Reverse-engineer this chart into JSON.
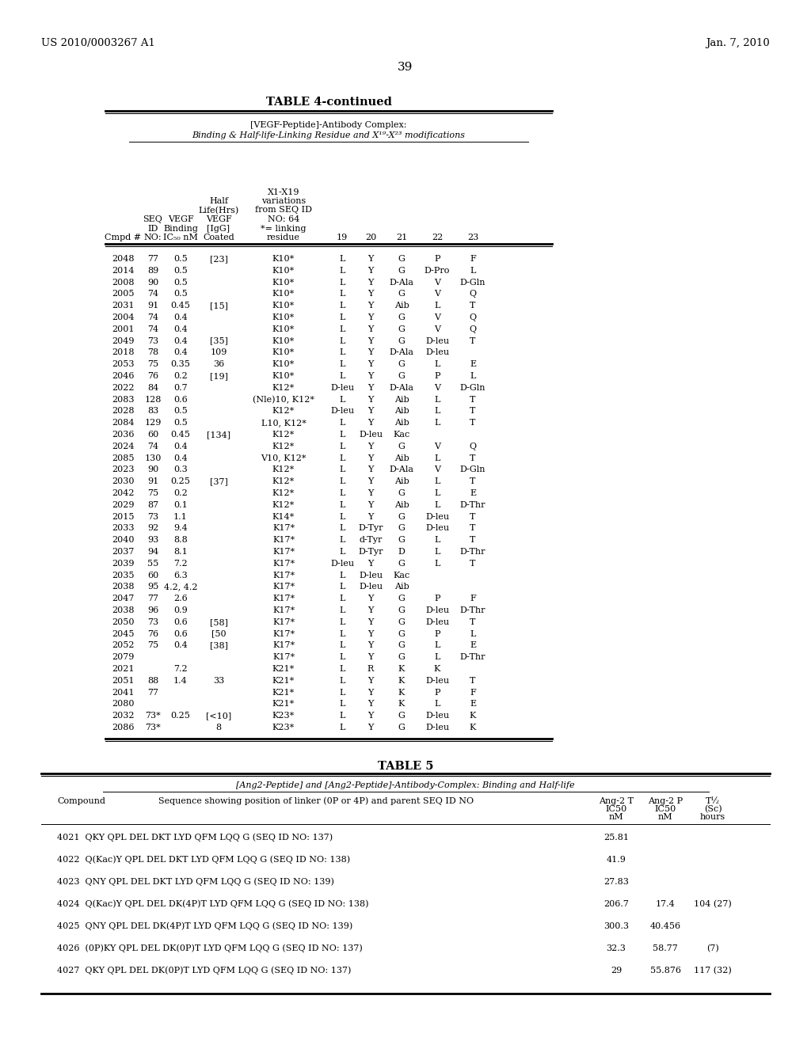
{
  "bg_color": "#ffffff",
  "header_left": "US 2010/0003267 A1",
  "header_right": "Jan. 7, 2010",
  "page_number": "39",
  "table4_title": "TABLE 4-continued",
  "table4_subtitle1": "[VEGF-Peptide]-Antibody Complex:",
  "table4_subtitle2": "Binding & Half-life-Linking Residue and X¹⁹-X²³ modifications",
  "table4_rows": [
    [
      "2048",
      "77",
      "0.5",
      "[23]",
      "K10*",
      "L",
      "Y",
      "G",
      "P",
      "F"
    ],
    [
      "2014",
      "89",
      "0.5",
      "",
      "K10*",
      "L",
      "Y",
      "G",
      "D-Pro",
      "L"
    ],
    [
      "2008",
      "90",
      "0.5",
      "",
      "K10*",
      "L",
      "Y",
      "D-Ala",
      "V",
      "D-Gln"
    ],
    [
      "2005",
      "74",
      "0.5",
      "",
      "K10*",
      "L",
      "Y",
      "G",
      "V",
      "Q"
    ],
    [
      "2031",
      "91",
      "0.45",
      "[15]",
      "K10*",
      "L",
      "Y",
      "Aib",
      "L",
      "T"
    ],
    [
      "2004",
      "74",
      "0.4",
      "",
      "K10*",
      "L",
      "Y",
      "G",
      "V",
      "Q"
    ],
    [
      "2001",
      "74",
      "0.4",
      "",
      "K10*",
      "L",
      "Y",
      "G",
      "V",
      "Q"
    ],
    [
      "2049",
      "73",
      "0.4",
      "[35]",
      "K10*",
      "L",
      "Y",
      "G",
      "D-leu",
      "T"
    ],
    [
      "2018",
      "78",
      "0.4",
      "109",
      "K10*",
      "L",
      "Y",
      "D-Ala",
      "D-leu",
      ""
    ],
    [
      "2053",
      "75",
      "0.35",
      "36",
      "K10*",
      "L",
      "Y",
      "G",
      "L",
      "E"
    ],
    [
      "2046",
      "76",
      "0.2",
      "[19]",
      "K10*",
      "L",
      "Y",
      "G",
      "P",
      "L"
    ],
    [
      "2022",
      "84",
      "0.7",
      "",
      "K12*",
      "D-leu",
      "Y",
      "D-Ala",
      "V",
      "D-Gln"
    ],
    [
      "2083",
      "128",
      "0.6",
      "",
      "(Nle)10, K12*",
      "L",
      "Y",
      "Aib",
      "L",
      "T"
    ],
    [
      "2028",
      "83",
      "0.5",
      "",
      "K12*",
      "D-leu",
      "Y",
      "Aib",
      "L",
      "T"
    ],
    [
      "2084",
      "129",
      "0.5",
      "",
      "L10, K12*",
      "L",
      "Y",
      "Aib",
      "L",
      "T"
    ],
    [
      "2036",
      "60",
      "0.45",
      "[134]",
      "K12*",
      "L",
      "D-leu",
      "Kac",
      "",
      ""
    ],
    [
      "2024",
      "74",
      "0.4",
      "",
      "K12*",
      "L",
      "Y",
      "G",
      "V",
      "Q"
    ],
    [
      "2085",
      "130",
      "0.4",
      "",
      "V10, K12*",
      "L",
      "Y",
      "Aib",
      "L",
      "T"
    ],
    [
      "2023",
      "90",
      "0.3",
      "",
      "K12*",
      "L",
      "Y",
      "D-Ala",
      "V",
      "D-Gln"
    ],
    [
      "2030",
      "91",
      "0.25",
      "[37]",
      "K12*",
      "L",
      "Y",
      "Aib",
      "L",
      "T"
    ],
    [
      "2042",
      "75",
      "0.2",
      "",
      "K12*",
      "L",
      "Y",
      "G",
      "L",
      "E"
    ],
    [
      "2029",
      "87",
      "0.1",
      "",
      "K12*",
      "L",
      "Y",
      "Aib",
      "L",
      "D-Thr"
    ],
    [
      "2015",
      "73",
      "1.1",
      "",
      "K14*",
      "L",
      "Y",
      "G",
      "D-leu",
      "T"
    ],
    [
      "2033",
      "92",
      "9.4",
      "",
      "K17*",
      "L",
      "D-Tyr",
      "G",
      "D-leu",
      "T"
    ],
    [
      "2040",
      "93",
      "8.8",
      "",
      "K17*",
      "L",
      "d-Tyr",
      "G",
      "L",
      "T"
    ],
    [
      "2037",
      "94",
      "8.1",
      "",
      "K17*",
      "L",
      "D-Tyr",
      "D",
      "L",
      "D-Thr"
    ],
    [
      "2039",
      "55",
      "7.2",
      "",
      "K17*",
      "D-leu",
      "Y",
      "G",
      "L",
      "T"
    ],
    [
      "2035",
      "60",
      "6.3",
      "",
      "K17*",
      "L",
      "D-leu",
      "Kac",
      "",
      ""
    ],
    [
      "2038",
      "95",
      "4.2, 4.2",
      "",
      "K17*",
      "L",
      "D-leu",
      "Aib",
      "",
      ""
    ],
    [
      "2047",
      "77",
      "2.6",
      "",
      "K17*",
      "L",
      "Y",
      "G",
      "P",
      "F"
    ],
    [
      "2038",
      "96",
      "0.9",
      "",
      "K17*",
      "L",
      "Y",
      "G",
      "D-leu",
      "D-Thr"
    ],
    [
      "2050",
      "73",
      "0.6",
      "[58]",
      "K17*",
      "L",
      "Y",
      "G",
      "D-leu",
      "T"
    ],
    [
      "2045",
      "76",
      "0.6",
      "[50",
      "K17*",
      "L",
      "Y",
      "G",
      "P",
      "L"
    ],
    [
      "2052",
      "75",
      "0.4",
      "[38]",
      "K17*",
      "L",
      "Y",
      "G",
      "L",
      "E"
    ],
    [
      "2079",
      "",
      "",
      "",
      "K17*",
      "L",
      "Y",
      "G",
      "L",
      "D-Thr"
    ],
    [
      "2021",
      "",
      "7.2",
      "",
      "K21*",
      "L",
      "R",
      "K",
      "K",
      ""
    ],
    [
      "2051",
      "88",
      "1.4",
      "33",
      "K21*",
      "L",
      "Y",
      "K",
      "D-leu",
      "T"
    ],
    [
      "2041",
      "77",
      "",
      "",
      "K21*",
      "L",
      "Y",
      "K",
      "P",
      "F"
    ],
    [
      "2080",
      "",
      "",
      "",
      "K21*",
      "L",
      "Y",
      "K",
      "L",
      "E"
    ],
    [
      "2032",
      "73*",
      "0.25",
      "[<10]",
      "K23*",
      "L",
      "Y",
      "G",
      "D-leu",
      "K"
    ],
    [
      "2086",
      "73*",
      "",
      "8",
      "K23*",
      "L",
      "Y",
      "G",
      "D-leu",
      "K"
    ]
  ],
  "table5_title": "TABLE 5",
  "table5_subtitle": "[Ang2-Peptide] and [Ang2-Peptide]-Antibody-Complex: Binding and Half-life",
  "table5_rows": [
    [
      "4021",
      "QKY QPL DEL DKT LYD QFM LQQ G (SEQ ID NO: 137)",
      "25.81",
      "",
      ""
    ],
    [
      "4022",
      "Q(Kac)Y QPL DEL DKT LYD QFM LQQ G (SEQ ID NO: 138)",
      "41.9",
      "",
      ""
    ],
    [
      "4023",
      "QNY QPL DEL DKT LYD QFM LQQ G (SEQ ID NO: 139)",
      "27.83",
      "",
      ""
    ],
    [
      "4024",
      "Q(Kac)Y QPL DEL DK(4P)T LYD QFM LQQ G (SEQ ID NO: 138)",
      "206.7",
      "17.4",
      "104 (27)"
    ],
    [
      "4025",
      "QNY QPL DEL DK(4P)T LYD QFM LQQ G (SEQ ID NO: 139)",
      "300.3",
      "40.456",
      ""
    ],
    [
      "4026",
      "(0P)KY QPL DEL DK(0P)T LYD QFM LQQ G (SEQ ID NO: 137)",
      "32.3",
      "58.77",
      "(7)"
    ],
    [
      "4027",
      "QKY QPL DEL DK(0P)T LYD QFM LQQ G (SEQ ID NO: 137)",
      "29",
      "55.876",
      "117 (32)"
    ]
  ]
}
